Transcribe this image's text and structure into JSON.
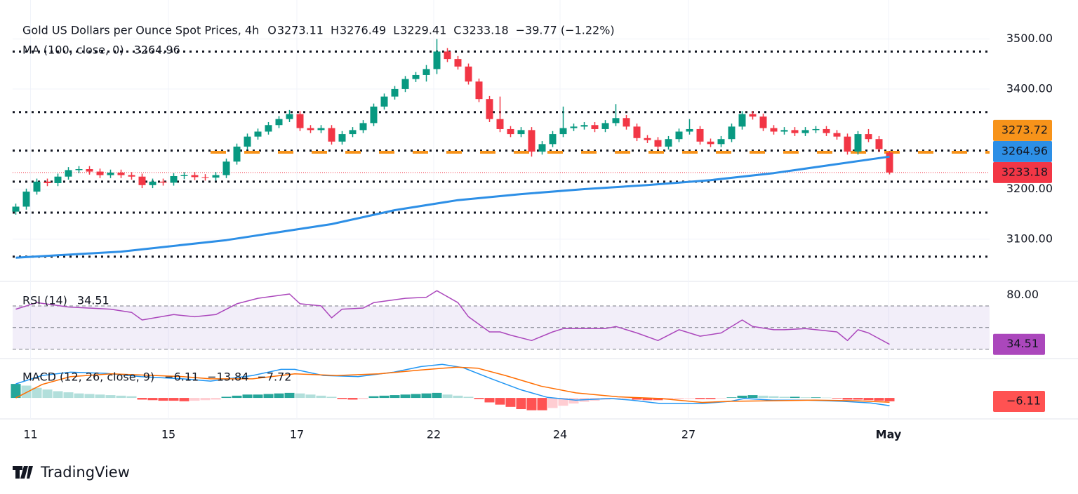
{
  "chart_data": {
    "type": "candlestick",
    "title": "Gold US Dollars per Ounce Spot Prices, 4h",
    "summary": [
      {
        "key": "O",
        "value": 3273.11
      },
      {
        "key": "H",
        "value": 3276.49
      },
      {
        "key": "L",
        "value": 3229.41
      },
      {
        "key": "C",
        "value": 3233.18
      }
    ],
    "change_label": "−39.77 (−1.22%)",
    "up_color": "#089981",
    "down_color": "#f23645",
    "open": [
      3155,
      3165,
      3195,
      3215,
      3212,
      3225,
      3238,
      3240,
      3235,
      3228,
      3233,
      3228,
      3225,
      3208,
      3215,
      3213,
      3226,
      3228,
      3224,
      3223,
      3228,
      3255,
      3285,
      3305,
      3315,
      3328,
      3340,
      3350,
      3322,
      3318,
      3322,
      3295,
      3310,
      3318,
      3332,
      3365,
      3385,
      3400,
      3420,
      3428,
      3440,
      3475,
      3460,
      3445,
      3415,
      3380,
      3340,
      3320,
      3310,
      3318,
      3275,
      3290,
      3310,
      3322,
      3325,
      3328,
      3320,
      3332,
      3342,
      3325,
      3302,
      3298,
      3285,
      3300,
      3315,
      3320,
      3295,
      3290,
      3300,
      3325,
      3350,
      3345,
      3322,
      3315,
      3318,
      3312,
      3318,
      3320,
      3312,
      3305,
      3275,
      3310,
      3300,
      3273.11
    ],
    "high": [
      3171,
      3201,
      3221,
      3221,
      3231,
      3244,
      3246,
      3246,
      3241,
      3239,
      3239,
      3234,
      3231,
      3221,
      3221,
      3232,
      3234,
      3234,
      3230,
      3234,
      3261,
      3291,
      3311,
      3321,
      3334,
      3346,
      3358,
      3356,
      3328,
      3328,
      3328,
      3316,
      3324,
      3338,
      3371,
      3391,
      3406,
      3426,
      3434,
      3448,
      3500,
      3482,
      3466,
      3451,
      3421,
      3386,
      3385,
      3326,
      3324,
      3324,
      3296,
      3316,
      3365,
      3331,
      3334,
      3334,
      3338,
      3370,
      3348,
      3331,
      3308,
      3304,
      3306,
      3321,
      3340,
      3326,
      3301,
      3306,
      3331,
      3356,
      3356,
      3351,
      3328,
      3324,
      3324,
      3324,
      3326,
      3326,
      3318,
      3311,
      3316,
      3320,
      3306,
      3276.49
    ],
    "low": [
      3149,
      3159,
      3189,
      3206,
      3206,
      3219,
      3232,
      3229,
      3222,
      3222,
      3222,
      3219,
      3202,
      3202,
      3207,
      3207,
      3220,
      3218,
      3217,
      3217,
      3222,
      3249,
      3279,
      3299,
      3309,
      3322,
      3334,
      3316,
      3312,
      3312,
      3289,
      3289,
      3304,
      3312,
      3326,
      3359,
      3379,
      3394,
      3414,
      3415,
      3430,
      3454,
      3439,
      3409,
      3374,
      3334,
      3314,
      3304,
      3304,
      3265,
      3269,
      3284,
      3304,
      3316,
      3319,
      3314,
      3314,
      3326,
      3319,
      3296,
      3292,
      3279,
      3279,
      3294,
      3309,
      3289,
      3284,
      3284,
      3294,
      3319,
      3339,
      3316,
      3309,
      3309,
      3306,
      3306,
      3312,
      3306,
      3299,
      3269,
      3269,
      3294,
      3274,
      3229.41
    ],
    "close": [
      3165,
      3195,
      3215,
      3212,
      3225,
      3238,
      3240,
      3235,
      3228,
      3233,
      3228,
      3225,
      3208,
      3215,
      3213,
      3226,
      3228,
      3224,
      3223,
      3228,
      3255,
      3285,
      3305,
      3315,
      3328,
      3340,
      3350,
      3322,
      3318,
      3322,
      3295,
      3310,
      3318,
      3332,
      3365,
      3385,
      3400,
      3420,
      3428,
      3440,
      3475,
      3460,
      3445,
      3415,
      3380,
      3340,
      3320,
      3310,
      3318,
      3275,
      3290,
      3310,
      3322,
      3325,
      3328,
      3320,
      3332,
      3342,
      3325,
      3302,
      3298,
      3285,
      3300,
      3315,
      3320,
      3295,
      3290,
      3300,
      3325,
      3350,
      3345,
      3322,
      3315,
      3318,
      3312,
      3318,
      3320,
      3312,
      3305,
      3275,
      3310,
      3300,
      3280,
      3233.18
    ],
    "xlim": [
      -0.3,
      92.5
    ],
    "xticks": [
      {
        "value": 1.4,
        "label": "11"
      },
      {
        "value": 14.5,
        "label": "15"
      },
      {
        "value": 26.7,
        "label": "17"
      },
      {
        "value": 39.7,
        "label": "22"
      },
      {
        "value": 51.7,
        "label": "24"
      },
      {
        "value": 63.9,
        "label": "27"
      },
      {
        "value": 82.9,
        "label": "May"
      }
    ],
    "ylim": [
      3017,
      3578
    ],
    "yticks": [
      {
        "value": 3100,
        "label": "3100.00"
      },
      {
        "value": 3200,
        "label": "3200.00"
      },
      {
        "value": 3400,
        "label": "3400.00"
      },
      {
        "value": 3500,
        "label": "3500.00"
      }
    ],
    "levels": [
      3475,
      3354,
      3277,
      3215,
      3153,
      3065
    ],
    "pivot": {
      "value": 3273.72,
      "color": "#f7931a"
    },
    "ma": {
      "name": "MA (100, close, 0)",
      "color": "#2d8fe6",
      "x": [
        0,
        10,
        20,
        30,
        36,
        42,
        48,
        54,
        60,
        66,
        72,
        78,
        83
      ],
      "values": [
        3063,
        3075,
        3098,
        3130,
        3158,
        3178,
        3190,
        3200,
        3208,
        3218,
        3232,
        3250,
        3264.96
      ]
    },
    "rsi": {
      "name": "RSI (14)",
      "color": "#ab47bc",
      "ylim": [
        22,
        92
      ],
      "yticks": [
        {
          "value": 80,
          "label": "80.00"
        }
      ],
      "bands": [
        70,
        50,
        30
      ],
      "x": [
        0,
        2,
        5,
        9,
        11,
        12,
        15,
        17,
        19,
        21,
        23,
        26,
        27,
        29,
        30,
        31,
        33,
        34,
        37,
        39,
        40,
        42,
        43,
        45,
        46,
        47,
        49,
        51,
        52,
        54,
        56,
        57,
        59,
        61,
        63,
        65,
        67,
        69,
        70,
        72,
        73,
        75,
        78,
        79,
        80,
        81,
        83
      ],
      "values": [
        67,
        73,
        69,
        67,
        64,
        57,
        62,
        60,
        62,
        72,
        77,
        81,
        72,
        70,
        59,
        67,
        68,
        73,
        77,
        78,
        84,
        73,
        60,
        46,
        46,
        43,
        38,
        46,
        49,
        49,
        49,
        51,
        45,
        38,
        48,
        42,
        45,
        57,
        51,
        48,
        48,
        49,
        46,
        38,
        48,
        45,
        34.51
      ]
    },
    "macd": {
      "name": "MACD (12, 26, close, 9)",
      "ylim": [
        -35,
        69
      ],
      "histogram": [
        25,
        22,
        18,
        15,
        12,
        10,
        8,
        7,
        6,
        5,
        4,
        3,
        -3,
        -4,
        -5,
        -5,
        -6,
        -5,
        -4,
        -3,
        2,
        4,
        6,
        6,
        7,
        8,
        9,
        8,
        6,
        4,
        2,
        -2,
        -3,
        -2,
        3,
        4,
        5,
        6,
        7,
        8,
        9,
        6,
        4,
        2,
        -2,
        -8,
        -12,
        -16,
        -20,
        -22,
        -22,
        -18,
        -14,
        -10,
        -7,
        -5,
        -3,
        -2,
        -1,
        -3,
        -4,
        -4,
        -3,
        -2,
        -1,
        -2,
        -2,
        -1,
        1,
        4,
        5,
        4,
        3,
        2,
        2,
        1,
        1,
        0.5,
        -1,
        -3,
        -3,
        -4,
        -5,
        -6.11
      ],
      "histogram_label": "−6.11",
      "line": {
        "color": "#2196f3",
        "label": "−13.84",
        "x": [
          0,
          2.5,
          5.2,
          8.5,
          11.9,
          15.9,
          18.5,
          22.5,
          25.2,
          26.5,
          29.2,
          32.5,
          35.9,
          38.5,
          40.5,
          42.5,
          45.2,
          47.9,
          50.5,
          53.2,
          56.5,
          58.5,
          61.2,
          65.2,
          67.9,
          69.2,
          71.9,
          75.2,
          78.5,
          81.2,
          83
        ],
        "values": [
          25,
          40,
          46,
          44,
          38,
          34,
          30,
          40,
          51,
          51,
          40,
          38,
          46,
          56,
          60,
          54,
          34,
          15,
          1,
          -4,
          -1,
          -4,
          -10,
          -10,
          -6,
          -1,
          -4,
          -4,
          -6,
          -9,
          -13.84
        ]
      },
      "signal": {
        "color": "#ff6d00",
        "label": "−7.72",
        "x": [
          0,
          2.5,
          5.2,
          9.1,
          15.9,
          18.5,
          22.5,
          26.5,
          30.5,
          34.5,
          38.5,
          41.9,
          43.9,
          46.5,
          49.9,
          53.2,
          57.2,
          61.2,
          65.2,
          67.9,
          71.9,
          75.9,
          79.9,
          83
        ],
        "values": [
          0,
          24,
          38,
          43,
          38,
          34,
          34,
          43,
          40,
          43,
          50,
          55,
          53,
          40,
          21,
          9,
          2,
          -1,
          -8,
          -6,
          -5,
          -4,
          -5,
          -7.72
        ]
      }
    }
  },
  "brand": "TradingView"
}
